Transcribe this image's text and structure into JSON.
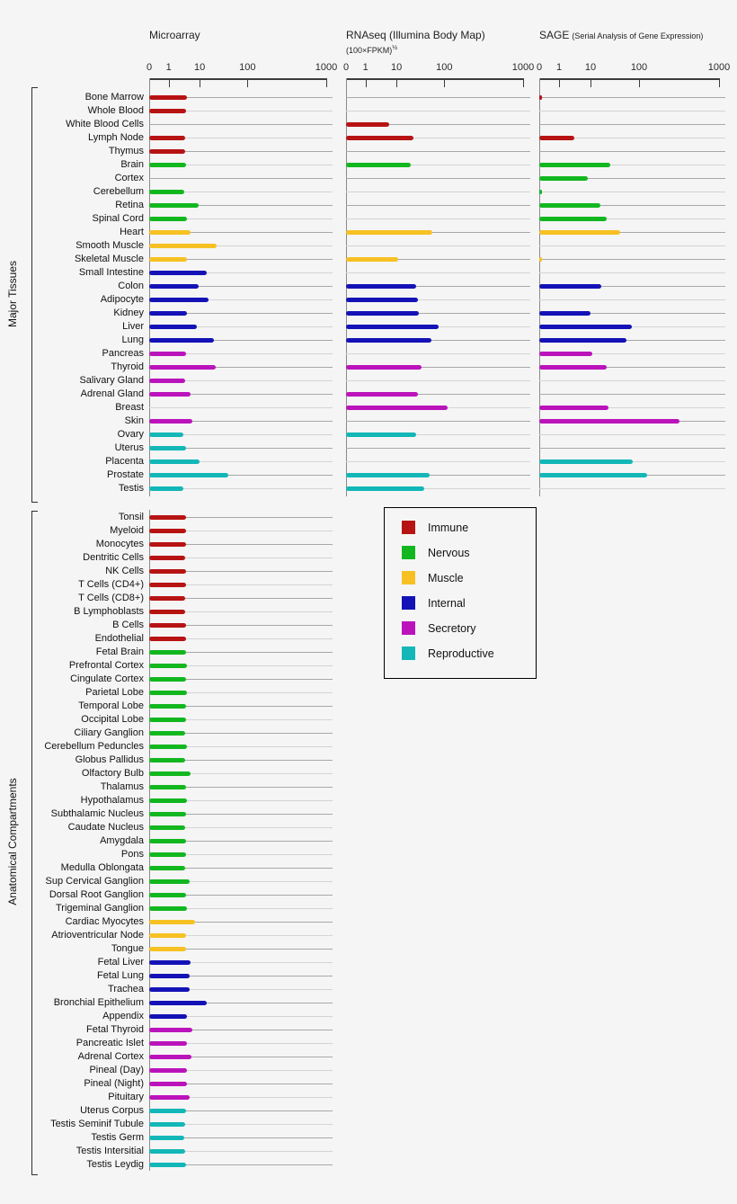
{
  "chart_data": {
    "type": "bar",
    "orientation": "horizontal",
    "axis": {
      "tick_labels": [
        "0",
        "1",
        "10",
        "100",
        "1000"
      ],
      "tick_values": [
        0,
        1,
        10,
        100,
        1000
      ],
      "scale": "compressed-log",
      "xlim": [
        0,
        1000
      ]
    },
    "colors": {
      "immune": "#b71313",
      "nervous": "#12b71f",
      "muscle": "#f7c123",
      "internal": "#1412b6",
      "secretory": "#bb13bb",
      "reproductive": "#13b7b7"
    },
    "panels": [
      {
        "id": "microarray",
        "title": "Microarray"
      },
      {
        "id": "rnaseq",
        "title": "RNAseq (Illumina Body Map)",
        "subtitle": "(100×FPKM)",
        "subtitle_sup": "½"
      },
      {
        "id": "sage",
        "title": "SAGE",
        "note": "(Serial Analysis of Gene Expression)"
      }
    ],
    "legend": {
      "items": [
        {
          "label": "Immune",
          "group": "immune"
        },
        {
          "label": "Nervous",
          "group": "nervous"
        },
        {
          "label": "Muscle",
          "group": "muscle"
        },
        {
          "label": "Internal",
          "group": "internal"
        },
        {
          "label": "Secretory",
          "group": "secretory"
        },
        {
          "label": "Reproductive",
          "group": "reproductive"
        }
      ]
    },
    "sections": [
      {
        "label": "Major Tissues",
        "rows": [
          {
            "tissue": "Bone Marrow",
            "group": "immune",
            "values": [
              4,
              null,
              0.15
            ]
          },
          {
            "tissue": "Whole Blood",
            "group": "immune",
            "values": [
              3.6,
              null,
              null
            ]
          },
          {
            "tissue": "White Blood Cells",
            "group": "immune",
            "values": [
              null,
              6,
              null
            ]
          },
          {
            "tissue": "Lymph Node",
            "group": "immune",
            "values": [
              3.4,
              23,
              3
            ]
          },
          {
            "tissue": "Thymus",
            "group": "immune",
            "values": [
              3.4,
              null,
              null
            ]
          },
          {
            "tissue": "Brain",
            "group": "nervous",
            "values": [
              3.6,
              20,
              26
            ]
          },
          {
            "tissue": "Cortex",
            "group": "nervous",
            "values": [
              null,
              null,
              8
            ]
          },
          {
            "tissue": "Cerebellum",
            "group": "nervous",
            "values": [
              3.1,
              null,
              0.15
            ]
          },
          {
            "tissue": "Retina",
            "group": "nervous",
            "values": [
              9,
              null,
              16
            ]
          },
          {
            "tissue": "Spinal Cord",
            "group": "nervous",
            "values": [
              4,
              null,
              22
            ]
          },
          {
            "tissue": "Heart",
            "group": "muscle",
            "values": [
              5,
              55,
              40
            ]
          },
          {
            "tissue": "Smooth Muscle",
            "group": "muscle",
            "values": [
              23,
              null,
              null
            ]
          },
          {
            "tissue": "Skeletal Muscle",
            "group": "muscle",
            "values": [
              4,
              11,
              0.15
            ]
          },
          {
            "tissue": "Small Intestine",
            "group": "internal",
            "values": [
              14,
              null,
              null
            ]
          },
          {
            "tissue": "Colon",
            "group": "internal",
            "values": [
              9,
              26,
              17
            ]
          },
          {
            "tissue": "Adipocyte",
            "group": "internal",
            "values": [
              15,
              28,
              null
            ]
          },
          {
            "tissue": "Kidney",
            "group": "internal",
            "values": [
              4,
              29,
              10
            ]
          },
          {
            "tissue": "Liver",
            "group": "internal",
            "values": [
              8,
              75,
              70
            ]
          },
          {
            "tissue": "Lung",
            "group": "internal",
            "values": [
              20,
              53,
              55
            ]
          },
          {
            "tissue": "Pancreas",
            "group": "secretory",
            "values": [
              3.6,
              null,
              11
            ]
          },
          {
            "tissue": "Thyroid",
            "group": "secretory",
            "values": [
              22,
              33,
              22
            ]
          },
          {
            "tissue": "Salivary Gland",
            "group": "secretory",
            "values": [
              3.4,
              null,
              null
            ]
          },
          {
            "tissue": "Adrenal Gland",
            "group": "secretory",
            "values": [
              5,
              28,
              null
            ]
          },
          {
            "tissue": "Breast",
            "group": "secretory",
            "values": [
              null,
              110,
              23
            ]
          },
          {
            "tissue": "Skin",
            "group": "secretory",
            "values": [
              6,
              null,
              320
            ]
          },
          {
            "tissue": "Ovary",
            "group": "reproductive",
            "values": [
              3,
              26,
              null
            ]
          },
          {
            "tissue": "Uterus",
            "group": "reproductive",
            "values": [
              3.6,
              null,
              null
            ]
          },
          {
            "tissue": "Placenta",
            "group": "reproductive",
            "values": [
              10,
              null,
              75
            ]
          },
          {
            "tissue": "Prostate",
            "group": "reproductive",
            "values": [
              40,
              50,
              125
            ]
          },
          {
            "tissue": "Testis",
            "group": "reproductive",
            "values": [
              3,
              38,
              null
            ]
          }
        ]
      },
      {
        "label": "Anatomical Compartments",
        "rows": [
          {
            "tissue": "Tonsil",
            "group": "immune",
            "values": [
              3.7
            ]
          },
          {
            "tissue": "Myeloid",
            "group": "immune",
            "values": [
              3.7
            ]
          },
          {
            "tissue": "Monocytes",
            "group": "immune",
            "values": [
              3.6
            ]
          },
          {
            "tissue": "Dentritic Cells",
            "group": "immune",
            "values": [
              3.5
            ]
          },
          {
            "tissue": "NK Cells",
            "group": "immune",
            "values": [
              3.6
            ]
          },
          {
            "tissue": "T Cells (CD4+)",
            "group": "immune",
            "values": [
              3.6
            ]
          },
          {
            "tissue": "T Cells (CD8+)",
            "group": "immune",
            "values": [
              3.3
            ]
          },
          {
            "tissue": "B Lymphoblasts",
            "group": "immune",
            "values": [
              3.5
            ]
          },
          {
            "tissue": "B Cells",
            "group": "immune",
            "values": [
              3.7
            ]
          },
          {
            "tissue": "Endothelial",
            "group": "immune",
            "values": [
              3.6
            ]
          },
          {
            "tissue": "Fetal Brain",
            "group": "nervous",
            "values": [
              3.6
            ]
          },
          {
            "tissue": "Prefrontal Cortex",
            "group": "nervous",
            "values": [
              4
            ]
          },
          {
            "tissue": "Cingulate Cortex",
            "group": "nervous",
            "values": [
              3.7
            ]
          },
          {
            "tissue": "Parietal Lobe",
            "group": "nervous",
            "values": [
              3.9
            ]
          },
          {
            "tissue": "Temporal Lobe",
            "group": "nervous",
            "values": [
              3.6
            ]
          },
          {
            "tissue": "Occipital Lobe",
            "group": "nervous",
            "values": [
              3.6
            ]
          },
          {
            "tissue": "Ciliary Ganglion",
            "group": "nervous",
            "values": [
              3.5
            ]
          },
          {
            "tissue": "Cerebellum Peduncles",
            "group": "nervous",
            "values": [
              4
            ]
          },
          {
            "tissue": "Globus Pallidus",
            "group": "nervous",
            "values": [
              3.3
            ]
          },
          {
            "tissue": "Olfactory Bulb",
            "group": "nervous",
            "values": [
              5.1
            ]
          },
          {
            "tissue": "Thalamus",
            "group": "nervous",
            "values": [
              3.7
            ]
          },
          {
            "tissue": "Hypothalamus",
            "group": "nervous",
            "values": [
              4
            ]
          },
          {
            "tissue": "Subthalamic Nucleus",
            "group": "nervous",
            "values": [
              3.6
            ]
          },
          {
            "tissue": "Caudate Nucleus",
            "group": "nervous",
            "values": [
              3.5
            ]
          },
          {
            "tissue": "Amygdala",
            "group": "nervous",
            "values": [
              3.7
            ]
          },
          {
            "tissue": "Pons",
            "group": "nervous",
            "values": [
              3.7
            ]
          },
          {
            "tissue": "Medulla Oblongata",
            "group": "nervous",
            "values": [
              3.5
            ]
          },
          {
            "tissue": "Sup Cervical Ganglion",
            "group": "nervous",
            "values": [
              4.8
            ]
          },
          {
            "tissue": "Dorsal Root Ganglion",
            "group": "nervous",
            "values": [
              3.6
            ]
          },
          {
            "tissue": "Trigeminal Ganglion",
            "group": "nervous",
            "values": [
              4
            ]
          },
          {
            "tissue": "Cardiac Myocytes",
            "group": "muscle",
            "values": [
              7
            ]
          },
          {
            "tissue": "Atrioventricular Node",
            "group": "muscle",
            "values": [
              3.7
            ]
          },
          {
            "tissue": "Tongue",
            "group": "muscle",
            "values": [
              3.7
            ]
          },
          {
            "tissue": "Fetal Liver",
            "group": "internal",
            "values": [
              5.1
            ]
          },
          {
            "tissue": "Fetal Lung",
            "group": "internal",
            "values": [
              4.8
            ]
          },
          {
            "tissue": "Trachea",
            "group": "internal",
            "values": [
              4.6
            ]
          },
          {
            "tissue": "Bronchial Epithelium",
            "group": "internal",
            "values": [
              14
            ]
          },
          {
            "tissue": "Appendix",
            "group": "internal",
            "values": [
              3.9
            ]
          },
          {
            "tissue": "Fetal Thyroid",
            "group": "secretory",
            "values": [
              5.7
            ]
          },
          {
            "tissue": "Pancreatic Islet",
            "group": "secretory",
            "values": [
              3.9
            ]
          },
          {
            "tissue": "Adrenal Cortex",
            "group": "secretory",
            "values": [
              5.4
            ]
          },
          {
            "tissue": "Pineal (Day)",
            "group": "secretory",
            "values": [
              3.9
            ]
          },
          {
            "tissue": "Pineal (Night)",
            "group": "secretory",
            "values": [
              4
            ]
          },
          {
            "tissue": "Pituitary",
            "group": "secretory",
            "values": [
              4.8
            ]
          },
          {
            "tissue": "Uterus Corpus",
            "group": "reproductive",
            "values": [
              3.6
            ]
          },
          {
            "tissue": "Testis Seminif Tubule",
            "group": "reproductive",
            "values": [
              3.3
            ]
          },
          {
            "tissue": "Testis Germ",
            "group": "reproductive",
            "values": [
              3.1
            ]
          },
          {
            "tissue": "Testis Intersitial",
            "group": "reproductive",
            "values": [
              3.3
            ]
          },
          {
            "tissue": "Testis Leydig",
            "group": "reproductive",
            "values": [
              3.6
            ]
          }
        ]
      }
    ]
  }
}
